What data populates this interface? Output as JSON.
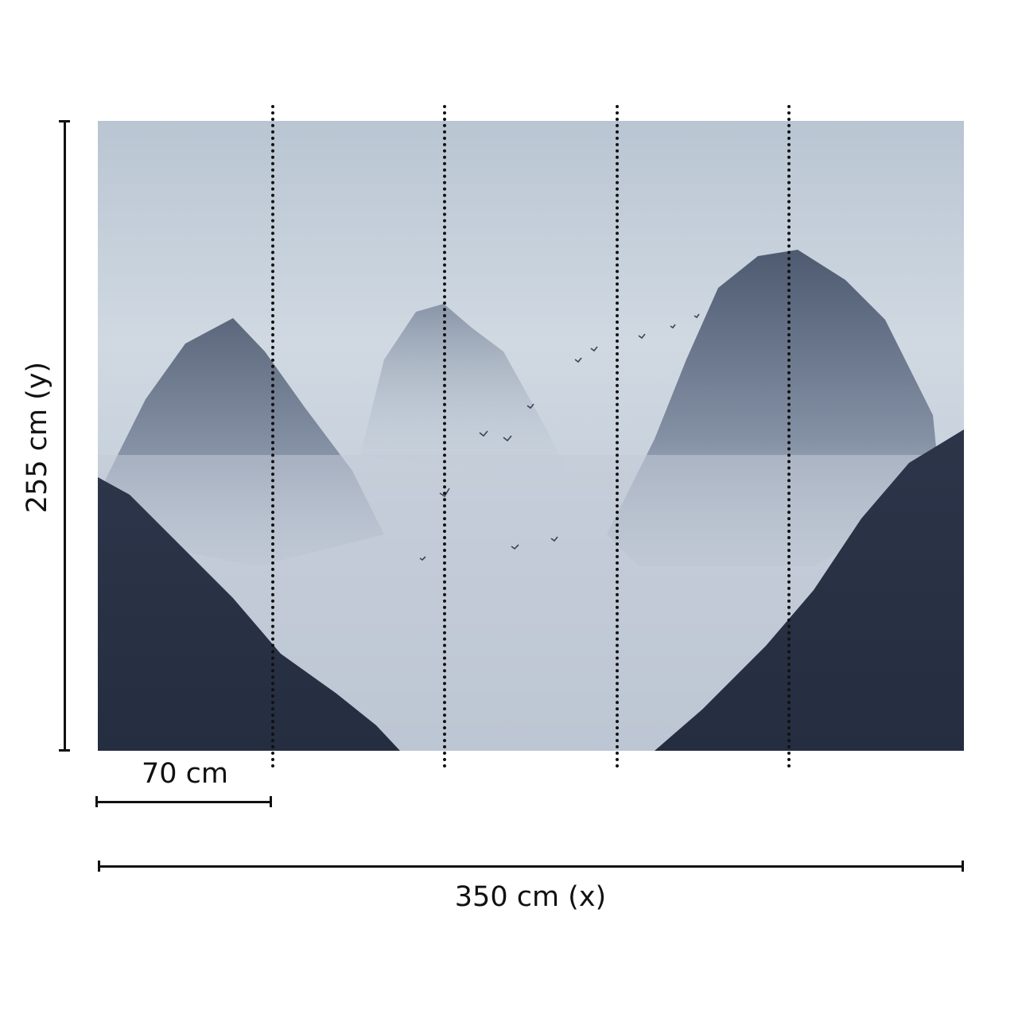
{
  "image": {
    "subject": "watercolor-misty-mountains-with-birds",
    "colors": {
      "sky": "#c9d3de",
      "mist": "#b7c3d1",
      "mountain_mid": "#6f7d92",
      "mountain_dark": "#2f3a50"
    }
  },
  "panels": {
    "count": 5
  },
  "dimensions": {
    "height_label": "255 cm (y)",
    "panel_width_label": "70 cm",
    "total_width_label": "350 cm (x)"
  }
}
